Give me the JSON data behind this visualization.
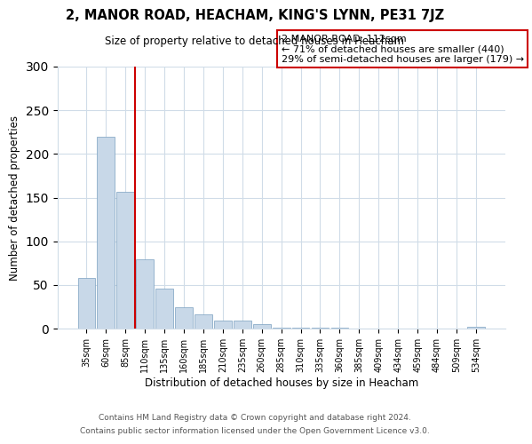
{
  "title": "2, MANOR ROAD, HEACHAM, KING'S LYNN, PE31 7JZ",
  "subtitle": "Size of property relative to detached houses in Heacham",
  "xlabel": "Distribution of detached houses by size in Heacham",
  "ylabel": "Number of detached properties",
  "bar_labels": [
    "35sqm",
    "60sqm",
    "85sqm",
    "110sqm",
    "135sqm",
    "160sqm",
    "185sqm",
    "210sqm",
    "235sqm",
    "260sqm",
    "285sqm",
    "310sqm",
    "335sqm",
    "360sqm",
    "385sqm",
    "409sqm",
    "434sqm",
    "459sqm",
    "484sqm",
    "509sqm",
    "534sqm"
  ],
  "bar_values": [
    58,
    220,
    157,
    79,
    46,
    24,
    16,
    9,
    9,
    5,
    1,
    1,
    1,
    1,
    0,
    0,
    0,
    0,
    0,
    0,
    2
  ],
  "bar_color": "#c8d8e8",
  "bar_edge_color": "#7aa0c0",
  "vline_x": 3,
  "vline_color": "#cc0000",
  "annotation_text": "2 MANOR ROAD: 112sqm\n← 71% of detached houses are smaller (440)\n29% of semi-detached houses are larger (179) →",
  "annotation_box_color": "#ffffff",
  "annotation_box_edge_color": "#cc0000",
  "ylim": [
    0,
    300
  ],
  "yticks": [
    0,
    50,
    100,
    150,
    200,
    250,
    300
  ],
  "footer_line1": "Contains HM Land Registry data © Crown copyright and database right 2024.",
  "footer_line2": "Contains public sector information licensed under the Open Government Licence v3.0.",
  "background_color": "#ffffff",
  "grid_color": "#d0dce8"
}
